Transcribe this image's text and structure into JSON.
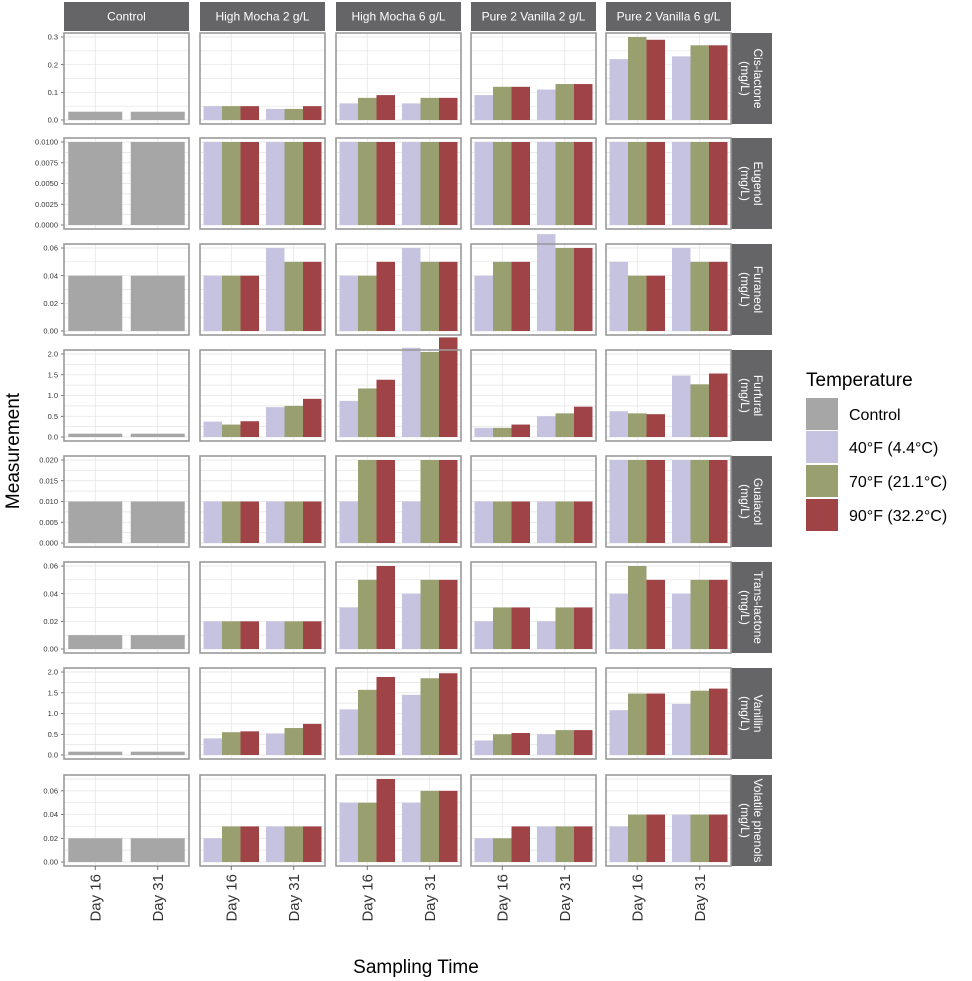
{
  "chart_data": {
    "type": "bar",
    "xlabel": "Sampling Time",
    "ylabel": "Measurement",
    "x": [
      "Day 16",
      "Day 31"
    ],
    "columns": [
      "Control",
      "High Mocha 2 g/L",
      "High Mocha 6 g/L",
      "Pure 2 Vanilla 2 g/L",
      "Pure 2 Vanilla 6 g/L"
    ],
    "legend": {
      "title": "Temperature",
      "placement": "right",
      "entries": [
        {
          "label": "Control",
          "color": "#a6a6a6"
        },
        {
          "label": "40°F (4.4°C)",
          "color": "#c5c3e0"
        },
        {
          "label": "70°F (21.1°C)",
          "color": "#9a9f70"
        },
        {
          "label": "90°F (32.2°C)",
          "color": "#a04346"
        }
      ]
    },
    "grid": true,
    "rows": [
      {
        "label": [
          "Cis-lactone",
          "(mg/L)"
        ],
        "ylim": [
          0,
          0.3
        ],
        "ticks": [
          "0.0",
          "0.1",
          "0.2",
          "0.3"
        ],
        "data": [
          [
            [
              0.03
            ],
            [
              0.03
            ]
          ],
          [
            [
              0.05,
              0.05,
              0.05
            ],
            [
              0.04,
              0.04,
              0.05
            ]
          ],
          [
            [
              0.06,
              0.08,
              0.09
            ],
            [
              0.06,
              0.08,
              0.08
            ]
          ],
          [
            [
              0.09,
              0.12,
              0.12
            ],
            [
              0.11,
              0.13,
              0.13
            ]
          ],
          [
            [
              0.22,
              0.3,
              0.29
            ],
            [
              0.23,
              0.27,
              0.27
            ]
          ]
        ]
      },
      {
        "label": [
          "Eugenol",
          "(mg/L)"
        ],
        "ylim": [
          0,
          0.01
        ],
        "ticks": [
          "0.0000",
          "0.0025",
          "0.0050",
          "0.0075",
          "0.0100"
        ],
        "data": [
          [
            [
              0.01
            ],
            [
              0.01
            ]
          ],
          [
            [
              0.01,
              0.01,
              0.01
            ],
            [
              0.01,
              0.01,
              0.01
            ]
          ],
          [
            [
              0.01,
              0.01,
              0.01
            ],
            [
              0.01,
              0.01,
              0.01
            ]
          ],
          [
            [
              0.01,
              0.01,
              0.01
            ],
            [
              0.01,
              0.01,
              0.01
            ]
          ],
          [
            [
              0.01,
              0.01,
              0.01
            ],
            [
              0.01,
              0.01,
              0.01
            ]
          ]
        ]
      },
      {
        "label": [
          "Furaneol",
          "(mg/L)"
        ],
        "ylim": [
          0,
          0.06
        ],
        "ticks": [
          "0.00",
          "0.02",
          "0.04",
          "0.06"
        ],
        "data": [
          [
            [
              0.04
            ],
            [
              0.04
            ]
          ],
          [
            [
              0.04,
              0.04,
              0.04
            ],
            [
              0.06,
              0.05,
              0.05
            ]
          ],
          [
            [
              0.04,
              0.04,
              0.05
            ],
            [
              0.06,
              0.05,
              0.05
            ]
          ],
          [
            [
              0.04,
              0.05,
              0.05
            ],
            [
              0.07,
              0.06,
              0.06
            ]
          ],
          [
            [
              0.05,
              0.04,
              0.04
            ],
            [
              0.06,
              0.05,
              0.05
            ]
          ]
        ]
      },
      {
        "label": [
          "Furfural",
          "(mg/L)"
        ],
        "ylim": [
          0,
          2.0
        ],
        "ticks": [
          "0.0",
          "0.5",
          "1.0",
          "1.5",
          "2.0"
        ],
        "data": [
          [
            [
              0.08
            ],
            [
              0.08
            ]
          ],
          [
            [
              0.37,
              0.3,
              0.38
            ],
            [
              0.72,
              0.75,
              0.92
            ]
          ],
          [
            [
              0.87,
              1.17,
              1.38
            ],
            [
              2.15,
              2.05,
              2.4
            ]
          ],
          [
            [
              0.22,
              0.22,
              0.3
            ],
            [
              0.5,
              0.57,
              0.73
            ]
          ],
          [
            [
              0.62,
              0.57,
              0.55
            ],
            [
              1.48,
              1.27,
              1.53
            ]
          ]
        ]
      },
      {
        "label": [
          "Guaiacol",
          "(mg/L)"
        ],
        "ylim": [
          0,
          0.02
        ],
        "ticks": [
          "0.000",
          "0.005",
          "0.010",
          "0.015",
          "0.020"
        ],
        "data": [
          [
            [
              0.01
            ],
            [
              0.01
            ]
          ],
          [
            [
              0.01,
              0.01,
              0.01
            ],
            [
              0.01,
              0.01,
              0.01
            ]
          ],
          [
            [
              0.01,
              0.02,
              0.02
            ],
            [
              0.01,
              0.02,
              0.02
            ]
          ],
          [
            [
              0.01,
              0.01,
              0.01
            ],
            [
              0.01,
              0.01,
              0.01
            ]
          ],
          [
            [
              0.02,
              0.02,
              0.02
            ],
            [
              0.02,
              0.02,
              0.02
            ]
          ]
        ]
      },
      {
        "label": [
          "Trans-lactone",
          "(mg/L)"
        ],
        "ylim": [
          0,
          0.06
        ],
        "ticks": [
          "0.00",
          "0.02",
          "0.04",
          "0.06"
        ],
        "data": [
          [
            [
              0.01
            ],
            [
              0.01
            ]
          ],
          [
            [
              0.02,
              0.02,
              0.02
            ],
            [
              0.02,
              0.02,
              0.02
            ]
          ],
          [
            [
              0.03,
              0.05,
              0.06
            ],
            [
              0.04,
              0.05,
              0.05
            ]
          ],
          [
            [
              0.02,
              0.03,
              0.03
            ],
            [
              0.02,
              0.03,
              0.03
            ]
          ],
          [
            [
              0.04,
              0.06,
              0.05
            ],
            [
              0.04,
              0.05,
              0.05
            ]
          ]
        ]
      },
      {
        "label": [
          "Vanillin",
          "(mg/L)"
        ],
        "ylim": [
          0,
          2.0
        ],
        "ticks": [
          "0.0",
          "0.5",
          "1.0",
          "1.5",
          "2.0"
        ],
        "data": [
          [
            [
              0.08
            ],
            [
              0.08
            ]
          ],
          [
            [
              0.4,
              0.55,
              0.57
            ],
            [
              0.52,
              0.65,
              0.75
            ]
          ],
          [
            [
              1.1,
              1.57,
              1.88
            ],
            [
              1.45,
              1.85,
              1.97
            ]
          ],
          [
            [
              0.35,
              0.5,
              0.53
            ],
            [
              0.5,
              0.6,
              0.6
            ]
          ],
          [
            [
              1.08,
              1.48,
              1.48
            ],
            [
              1.23,
              1.55,
              1.6
            ]
          ]
        ]
      },
      {
        "label": [
          "Volatile phenols",
          "(mg/L)"
        ],
        "ylim": [
          0,
          0.07
        ],
        "ticks": [
          "0.00",
          "0.02",
          "0.04",
          "0.06"
        ],
        "data": [
          [
            [
              0.02
            ],
            [
              0.02
            ]
          ],
          [
            [
              0.02,
              0.03,
              0.03
            ],
            [
              0.03,
              0.03,
              0.03
            ]
          ],
          [
            [
              0.05,
              0.05,
              0.07
            ],
            [
              0.05,
              0.06,
              0.06
            ]
          ],
          [
            [
              0.02,
              0.02,
              0.03
            ],
            [
              0.03,
              0.03,
              0.03
            ]
          ],
          [
            [
              0.03,
              0.04,
              0.04
            ],
            [
              0.04,
              0.04,
              0.04
            ]
          ]
        ]
      }
    ]
  }
}
